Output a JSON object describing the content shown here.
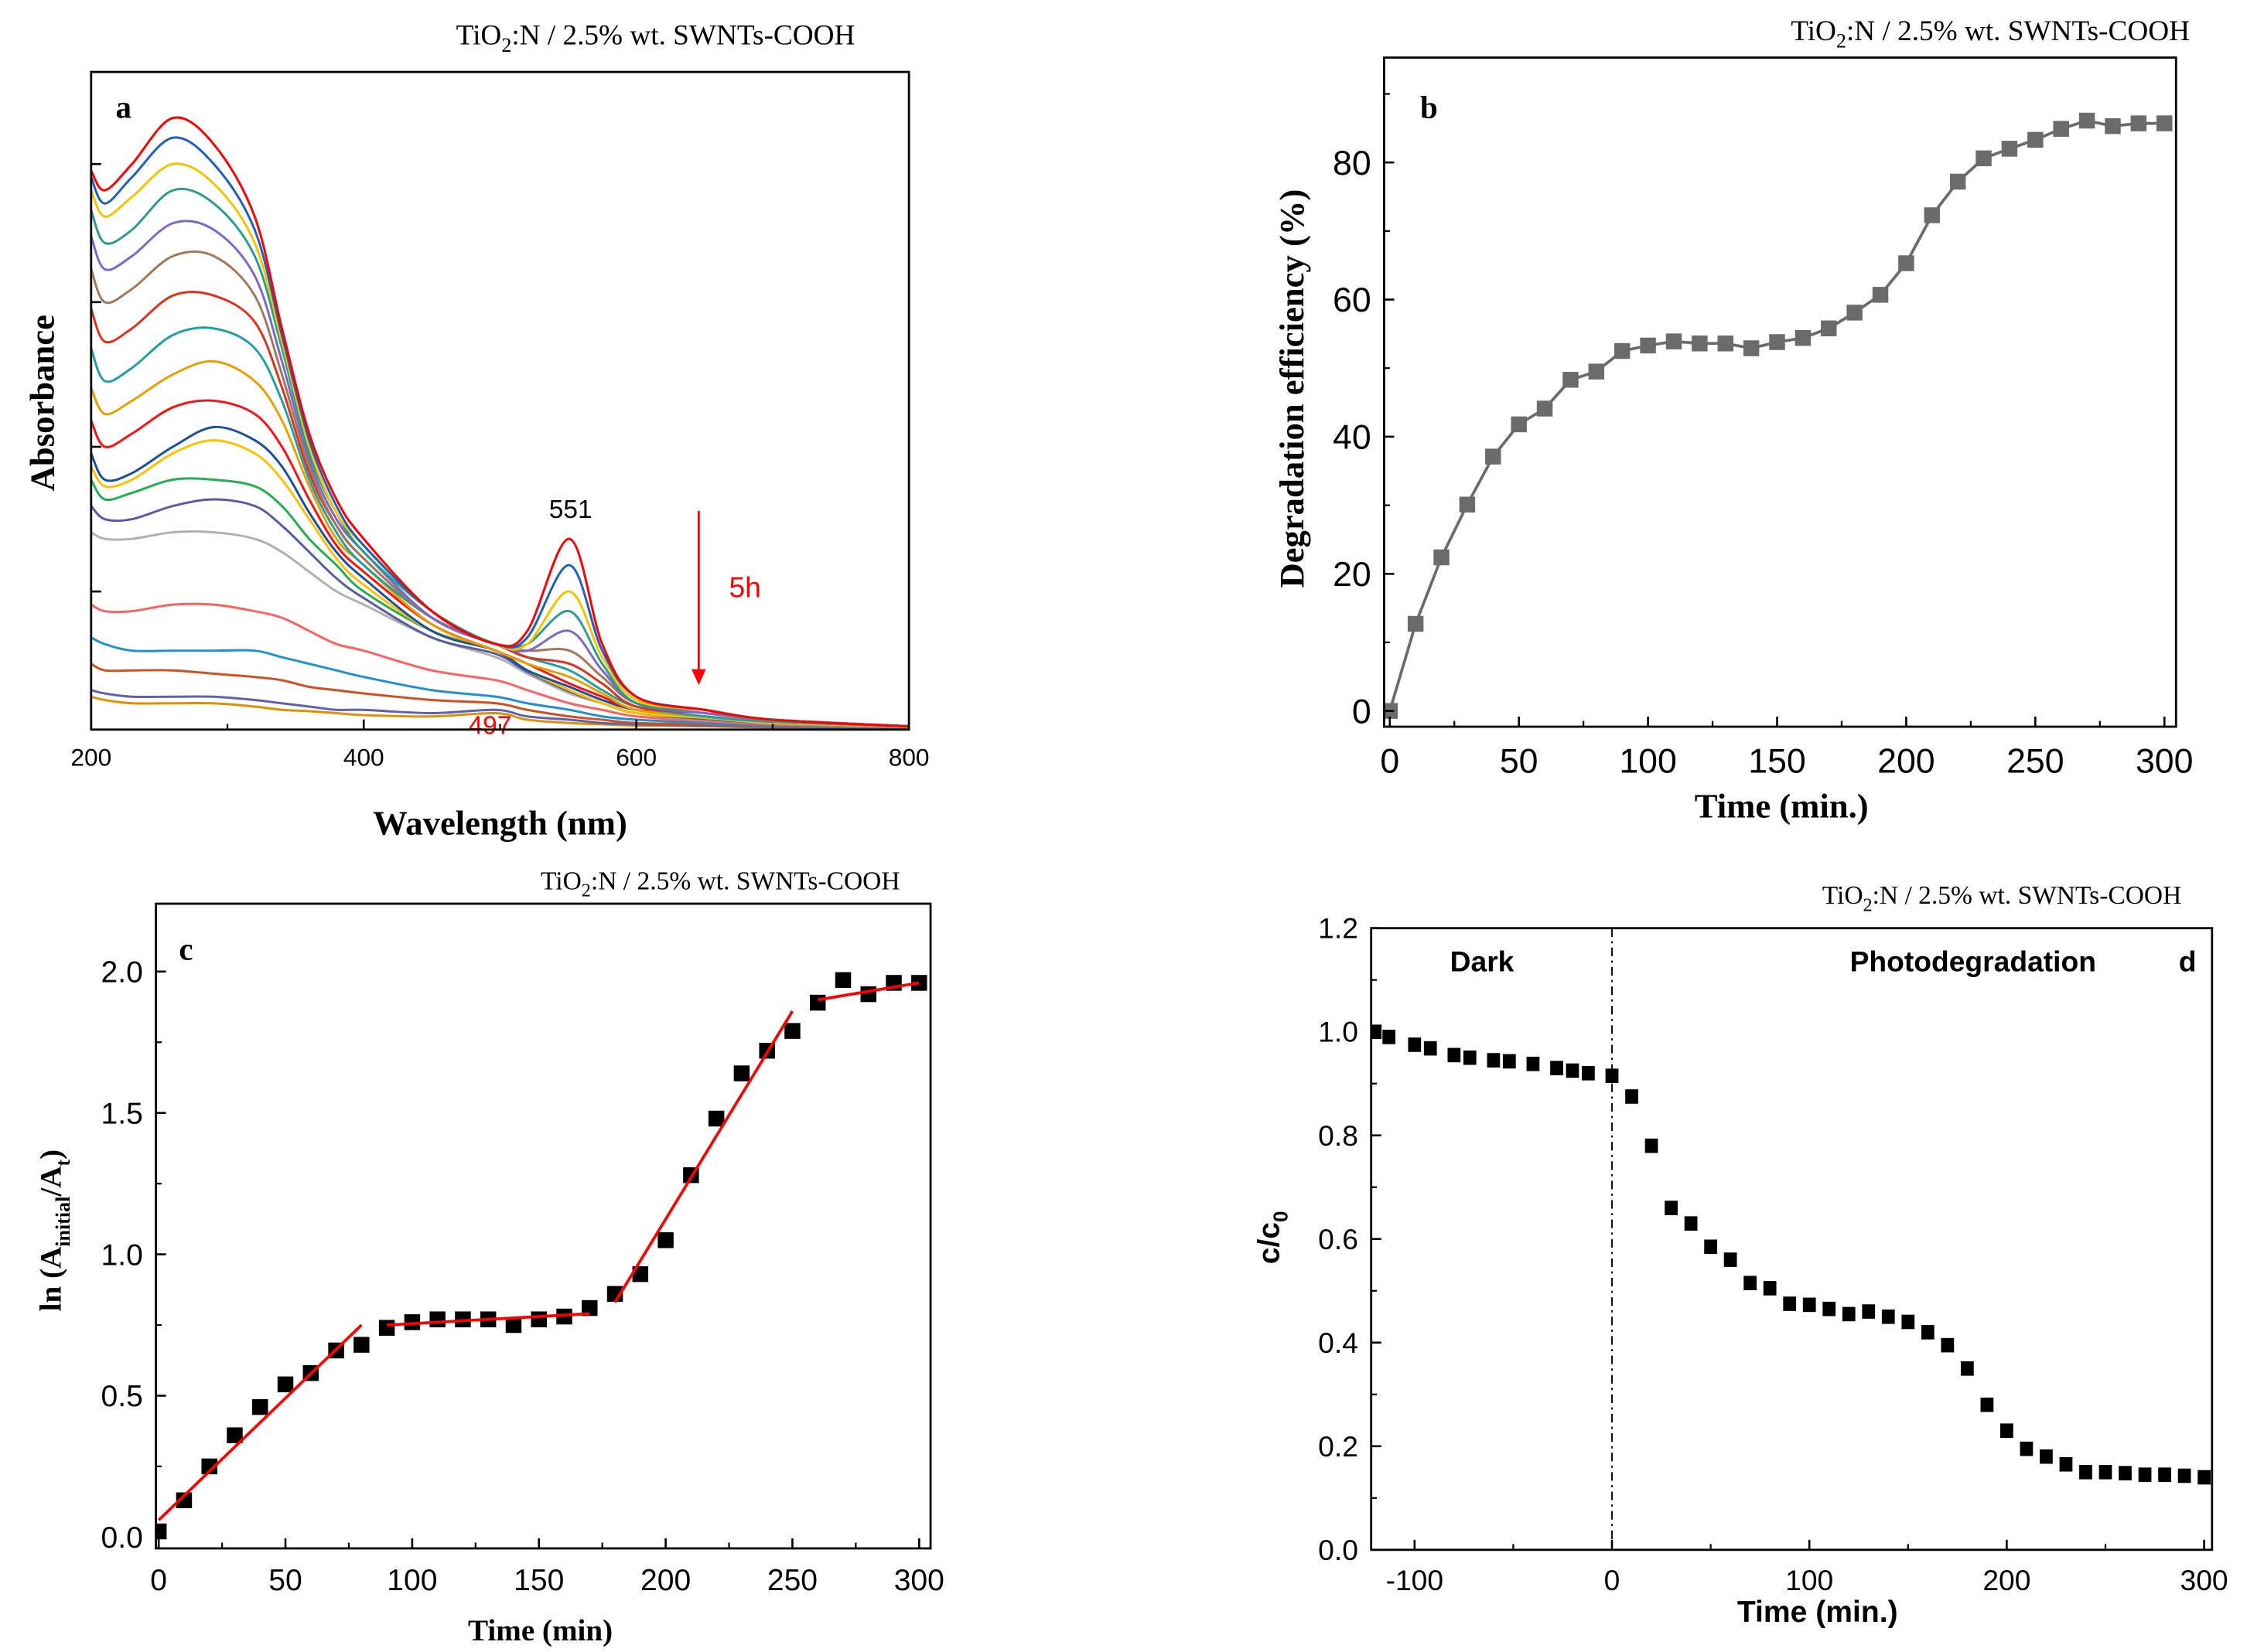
{
  "chart_data": [
    {
      "id": "a",
      "type": "line",
      "panel_label": "a",
      "title_parts": [
        "TiO",
        "2",
        ":N / 2.5% wt. SWNTs-COOH"
      ],
      "xlabel": "Wavelength (nm)",
      "ylabel": "Absorbance",
      "xlim": [
        200,
        800
      ],
      "ylim": [
        0,
        1
      ],
      "xticks": [
        200,
        400,
        600,
        800
      ],
      "xtick_labels": [
        "200",
        "400",
        "600",
        "800"
      ],
      "yticks": [
        0.21,
        0.43,
        0.65,
        0.86
      ],
      "ytick_labels": [],
      "grid": false,
      "annotations": {
        "peak_551": "551",
        "peak_497": "497",
        "arrow_label": "5h"
      },
      "annotation_color": "#ff0000",
      "x": [
        200,
        210,
        230,
        260,
        290,
        320,
        340,
        360,
        380,
        400,
        450,
        497,
        520,
        551,
        575,
        600,
        650,
        700,
        800
      ],
      "series": [
        {
          "color": "#ff0000",
          "values": [
            0.85,
            0.82,
            0.86,
            0.93,
            0.89,
            0.78,
            0.61,
            0.45,
            0.35,
            0.29,
            0.18,
            0.13,
            0.15,
            0.29,
            0.13,
            0.05,
            0.03,
            0.015,
            0.005
          ]
        },
        {
          "color": "#1f5fbf",
          "values": [
            0.84,
            0.8,
            0.84,
            0.9,
            0.86,
            0.76,
            0.6,
            0.44,
            0.34,
            0.28,
            0.18,
            0.13,
            0.14,
            0.25,
            0.12,
            0.05,
            0.03,
            0.015,
            0.005
          ]
        },
        {
          "color": "#f5c400",
          "values": [
            0.82,
            0.78,
            0.81,
            0.86,
            0.83,
            0.74,
            0.59,
            0.43,
            0.33,
            0.28,
            0.18,
            0.13,
            0.13,
            0.21,
            0.11,
            0.045,
            0.03,
            0.015,
            0.005
          ]
        },
        {
          "color": "#2a9d8f",
          "values": [
            0.79,
            0.74,
            0.76,
            0.82,
            0.8,
            0.72,
            0.58,
            0.42,
            0.33,
            0.27,
            0.18,
            0.13,
            0.13,
            0.18,
            0.1,
            0.04,
            0.03,
            0.015,
            0.005
          ]
        },
        {
          "color": "#7b68c8",
          "values": [
            0.75,
            0.7,
            0.72,
            0.77,
            0.76,
            0.69,
            0.56,
            0.41,
            0.32,
            0.27,
            0.17,
            0.13,
            0.12,
            0.15,
            0.09,
            0.04,
            0.025,
            0.015,
            0.005
          ]
        },
        {
          "color": "#a0785a",
          "values": [
            0.7,
            0.65,
            0.67,
            0.72,
            0.72,
            0.66,
            0.54,
            0.4,
            0.31,
            0.26,
            0.17,
            0.13,
            0.12,
            0.12,
            0.08,
            0.04,
            0.025,
            0.015,
            0.005
          ]
        },
        {
          "color": "#e0301e",
          "values": [
            0.64,
            0.59,
            0.61,
            0.66,
            0.66,
            0.62,
            0.52,
            0.39,
            0.31,
            0.26,
            0.17,
            0.13,
            0.11,
            0.1,
            0.07,
            0.035,
            0.025,
            0.015,
            0.005
          ]
        },
        {
          "color": "#20a0a0",
          "values": [
            0.58,
            0.53,
            0.55,
            0.6,
            0.61,
            0.58,
            0.5,
            0.38,
            0.3,
            0.25,
            0.17,
            0.13,
            0.11,
            0.09,
            0.06,
            0.035,
            0.02,
            0.012,
            0.005
          ]
        },
        {
          "color": "#e8a000",
          "values": [
            0.52,
            0.48,
            0.5,
            0.54,
            0.56,
            0.53,
            0.47,
            0.37,
            0.29,
            0.25,
            0.16,
            0.12,
            0.1,
            0.08,
            0.055,
            0.03,
            0.02,
            0.012,
            0.005
          ]
        },
        {
          "color": "#ff1010",
          "values": [
            0.47,
            0.43,
            0.45,
            0.49,
            0.5,
            0.48,
            0.43,
            0.35,
            0.28,
            0.24,
            0.16,
            0.12,
            0.1,
            0.07,
            0.05,
            0.03,
            0.02,
            0.012,
            0.005
          ]
        },
        {
          "color": "#1a4fa0",
          "values": [
            0.42,
            0.38,
            0.39,
            0.43,
            0.46,
            0.44,
            0.4,
            0.33,
            0.27,
            0.23,
            0.15,
            0.12,
            0.09,
            0.065,
            0.045,
            0.03,
            0.02,
            0.012,
            0.005
          ]
        },
        {
          "color": "#ffc000",
          "values": [
            0.4,
            0.37,
            0.38,
            0.42,
            0.44,
            0.42,
            0.38,
            0.32,
            0.26,
            0.22,
            0.15,
            0.12,
            0.09,
            0.06,
            0.04,
            0.025,
            0.018,
            0.01,
            0.005
          ]
        },
        {
          "color": "#20b050",
          "values": [
            0.38,
            0.35,
            0.36,
            0.38,
            0.38,
            0.37,
            0.34,
            0.29,
            0.25,
            0.21,
            0.15,
            0.12,
            0.09,
            0.06,
            0.04,
            0.025,
            0.018,
            0.01,
            0.005
          ]
        },
        {
          "color": "#5a5aa0",
          "values": [
            0.34,
            0.32,
            0.32,
            0.34,
            0.35,
            0.34,
            0.31,
            0.27,
            0.23,
            0.2,
            0.14,
            0.115,
            0.088,
            0.058,
            0.04,
            0.025,
            0.016,
            0.01,
            0.005
          ]
        },
        {
          "color": "#b0b0b0",
          "values": [
            0.3,
            0.29,
            0.29,
            0.3,
            0.3,
            0.29,
            0.27,
            0.24,
            0.21,
            0.19,
            0.14,
            0.11,
            0.085,
            0.055,
            0.04,
            0.025,
            0.015,
            0.01,
            0.005
          ]
        },
        {
          "color": "#ff6060",
          "values": [
            0.19,
            0.18,
            0.18,
            0.19,
            0.19,
            0.18,
            0.17,
            0.15,
            0.13,
            0.12,
            0.09,
            0.075,
            0.06,
            0.04,
            0.03,
            0.02,
            0.013,
            0.008,
            0.004
          ]
        },
        {
          "color": "#2090d0",
          "values": [
            0.14,
            0.13,
            0.12,
            0.12,
            0.12,
            0.12,
            0.11,
            0.1,
            0.09,
            0.08,
            0.06,
            0.05,
            0.04,
            0.03,
            0.02,
            0.015,
            0.01,
            0.006,
            0.003
          ]
        },
        {
          "color": "#d05020",
          "values": [
            0.1,
            0.09,
            0.09,
            0.09,
            0.085,
            0.08,
            0.075,
            0.065,
            0.06,
            0.055,
            0.045,
            0.04,
            0.03,
            0.02,
            0.015,
            0.01,
            0.008,
            0.005,
            0.003
          ]
        },
        {
          "color": "#6060b0",
          "values": [
            0.06,
            0.055,
            0.05,
            0.05,
            0.05,
            0.045,
            0.04,
            0.035,
            0.03,
            0.03,
            0.025,
            0.03,
            0.02,
            0.015,
            0.01,
            0.008,
            0.006,
            0.004,
            0.002
          ]
        },
        {
          "color": "#e09000",
          "values": [
            0.05,
            0.045,
            0.04,
            0.04,
            0.04,
            0.035,
            0.03,
            0.028,
            0.025,
            0.022,
            0.02,
            0.025,
            0.015,
            0.01,
            0.008,
            0.006,
            0.005,
            0.003,
            0.002
          ]
        }
      ]
    },
    {
      "id": "b",
      "type": "line",
      "panel_label": "b",
      "title_parts": [
        "TiO",
        "2",
        ":N / 2.5% wt. SWNTs-COOH"
      ],
      "xlabel": "Time (min.)",
      "ylabel": "Degradation efficiency (%)",
      "xlim": [
        -2.2,
        304.5
      ],
      "ylim": [
        -2.3,
        95.3
      ],
      "xticks": [
        0,
        50,
        100,
        150,
        200,
        250,
        300
      ],
      "xtick_labels": [
        "0",
        "50",
        "100",
        "150",
        "200",
        "250",
        "300"
      ],
      "yticks": [
        0,
        20,
        40,
        60,
        80
      ],
      "ytick_labels": [
        "0",
        "20",
        "40",
        "60",
        "80"
      ],
      "grid": false,
      "marker_color": "#6b6b6b",
      "x": [
        0,
        10,
        20,
        30,
        40,
        50,
        60,
        70,
        80,
        90,
        100,
        110,
        120,
        130,
        140,
        150,
        160,
        170,
        180,
        190,
        200,
        210,
        220,
        230,
        240,
        250,
        260,
        270,
        280,
        290,
        300
      ],
      "values": [
        0,
        12.7,
        22.4,
        30.1,
        37.1,
        41.8,
        44.1,
        48.3,
        49.5,
        52.5,
        53.3,
        53.9,
        53.6,
        53.6,
        52.9,
        53.8,
        54.4,
        55.8,
        58.1,
        60.7,
        65.3,
        72.3,
        77.2,
        80.6,
        82.0,
        83.3,
        84.9,
        86.1,
        85.3,
        85.7,
        85.7
      ]
    },
    {
      "id": "c",
      "type": "scatter",
      "panel_label": "c",
      "title_parts": [
        "TiO",
        "2",
        ":N / 2.5% wt. SWNTs-COOH"
      ],
      "xlabel": "Time (min)",
      "ylabel_parts": [
        "ln (A",
        "initial",
        "/A",
        "t",
        ")"
      ],
      "xlim": [
        -1.1,
        304.5
      ],
      "ylim": [
        -0.04,
        2.24
      ],
      "xticks": [
        0,
        50,
        100,
        150,
        200,
        250,
        300
      ],
      "xtick_labels": [
        "0",
        "50",
        "100",
        "150",
        "200",
        "250",
        "300"
      ],
      "yticks": [
        0,
        0.5,
        1.0,
        1.5,
        2.0
      ],
      "ytick_labels": [
        "0.0",
        "0.5",
        "1.0",
        "1.5",
        "2.0"
      ],
      "grid": false,
      "fit_color": "#ff0000",
      "x": [
        0,
        10,
        20,
        30,
        40,
        50,
        60,
        70,
        80,
        90,
        100,
        110,
        120,
        130,
        140,
        150,
        160,
        170,
        180,
        190,
        200,
        210,
        220,
        230,
        240,
        250,
        260,
        270,
        280,
        290,
        300
      ],
      "values": [
        0.02,
        0.13,
        0.25,
        0.36,
        0.46,
        0.54,
        0.58,
        0.66,
        0.68,
        0.74,
        0.76,
        0.77,
        0.77,
        0.77,
        0.75,
        0.77,
        0.78,
        0.81,
        0.86,
        0.93,
        1.05,
        1.28,
        1.48,
        1.64,
        1.72,
        1.79,
        1.89,
        1.97,
        1.92,
        1.96,
        1.96
      ],
      "fits": [
        {
          "x": [
            0,
            80
          ],
          "y": [
            0.06,
            0.75
          ]
        },
        {
          "x": [
            90,
            170
          ],
          "y": [
            0.75,
            0.79
          ]
        },
        {
          "x": [
            180,
            250
          ],
          "y": [
            0.83,
            1.86
          ]
        },
        {
          "x": [
            260,
            300
          ],
          "y": [
            1.9,
            1.96
          ]
        }
      ]
    },
    {
      "id": "d",
      "type": "scatter",
      "panel_label": "d",
      "title_parts": [
        "TiO",
        "2",
        ":N / 2.5% wt. SWNTs-COOH"
      ],
      "xlabel": "Time (min.)",
      "ylabel_parts": [
        "c/c",
        "0"
      ],
      "xlim": [
        -122,
        304
      ],
      "ylim": [
        0,
        1.2
      ],
      "xticks": [
        -100,
        0,
        100,
        200,
        300
      ],
      "xtick_labels": [
        "-100",
        "0",
        "100",
        "200",
        "300"
      ],
      "yticks": [
        0,
        0.2,
        0.4,
        0.6,
        0.8,
        1.0,
        1.2
      ],
      "ytick_labels": [
        "0.0",
        "0.2",
        "0.4",
        "0.6",
        "0.8",
        "1.0",
        "1.2"
      ],
      "grid": false,
      "regions": {
        "dark": "Dark",
        "photo": "Photodegradation"
      },
      "divider_x": 0,
      "x": [
        -120,
        -113,
        -100,
        -92,
        -80,
        -72,
        -60,
        -52,
        -40,
        -28,
        -20,
        -12,
        0,
        10,
        20,
        30,
        40,
        50,
        60,
        70,
        80,
        90,
        100,
        110,
        120,
        130,
        140,
        150,
        160,
        170,
        180,
        190,
        200,
        210,
        220,
        230,
        240,
        250,
        260,
        270,
        280,
        290,
        300
      ],
      "values": [
        1.0,
        0.99,
        0.975,
        0.968,
        0.955,
        0.95,
        0.945,
        0.943,
        0.938,
        0.93,
        0.925,
        0.92,
        0.915,
        0.875,
        0.78,
        0.66,
        0.63,
        0.585,
        0.56,
        0.515,
        0.505,
        0.475,
        0.473,
        0.465,
        0.455,
        0.46,
        0.45,
        0.44,
        0.42,
        0.395,
        0.35,
        0.28,
        0.23,
        0.195,
        0.18,
        0.165,
        0.15,
        0.15,
        0.148,
        0.145,
        0.145,
        0.143,
        0.14
      ]
    }
  ]
}
